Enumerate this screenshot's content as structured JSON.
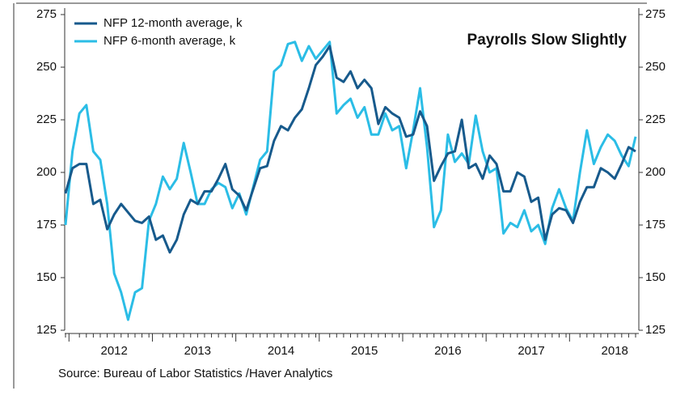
{
  "chart_data": {
    "type": "line",
    "title": "Payrolls Slow Slightly",
    "source": "Source:  Bureau of Labor Statistics /Haver Analytics",
    "categories": [
      null,
      null,
      null,
      null,
      null,
      null,
      null,
      "2012",
      null,
      null,
      null,
      null,
      null,
      null,
      null,
      null,
      null,
      null,
      null,
      "2013",
      null,
      null,
      null,
      null,
      null,
      null,
      null,
      null,
      null,
      null,
      null,
      "2014",
      null,
      null,
      null,
      null,
      null,
      null,
      null,
      null,
      null,
      null,
      null,
      "2015",
      null,
      null,
      null,
      null,
      null,
      null,
      null,
      null,
      null,
      null,
      null,
      "2016",
      null,
      null,
      null,
      null,
      null,
      null,
      null,
      null,
      null,
      null,
      null,
      "2017",
      null,
      null,
      null,
      null,
      null,
      null,
      null,
      null,
      null,
      null,
      null,
      "2018",
      null,
      null,
      null
    ],
    "series": [
      {
        "name": "NFP 12-month average, k",
        "color": "#175a8c",
        "values": [
          190,
          202,
          204,
          204,
          185,
          187,
          173,
          180,
          185,
          181,
          177,
          176,
          179,
          168,
          170,
          162,
          168,
          180,
          187,
          185,
          191,
          191,
          197,
          204,
          192,
          189,
          182,
          192,
          202,
          203,
          215,
          222,
          220,
          226,
          230,
          240,
          251,
          255,
          260,
          245,
          243,
          248,
          240,
          244,
          240,
          223,
          231,
          228,
          226,
          217,
          218,
          229,
          222,
          196,
          203,
          209,
          210,
          225,
          202,
          204,
          197,
          208,
          204,
          191,
          191,
          200,
          198,
          186,
          188,
          168,
          180,
          183,
          182,
          176,
          186,
          193,
          193,
          202,
          200,
          197,
          204,
          212,
          210
        ]
      },
      {
        "name": "NFP 6-month average, k",
        "color": "#2bbde6",
        "values": [
          175,
          210,
          228,
          232,
          210,
          206,
          185,
          152,
          143,
          130,
          143,
          145,
          177,
          185,
          198,
          192,
          197,
          214,
          200,
          185,
          185,
          192,
          195,
          193,
          183,
          190,
          180,
          193,
          206,
          210,
          248,
          251,
          261,
          262,
          253,
          260,
          254,
          258,
          262,
          228,
          232,
          235,
          226,
          231,
          218,
          218,
          228,
          220,
          222,
          202,
          220,
          240,
          212,
          174,
          182,
          218,
          205,
          209,
          204,
          227,
          210,
          200,
          202,
          171,
          176,
          174,
          182,
          172,
          175,
          166,
          183,
          192,
          183,
          177,
          200,
          220,
          204,
          212,
          218,
          215,
          208,
          203,
          217
        ]
      }
    ],
    "ylim": [
      125,
      275
    ],
    "yticks": [
      125,
      150,
      175,
      200,
      225,
      250,
      275
    ],
    "y2lim": [
      125,
      275
    ],
    "y2ticks": [
      125,
      150,
      175,
      200,
      225,
      250,
      275
    ]
  }
}
